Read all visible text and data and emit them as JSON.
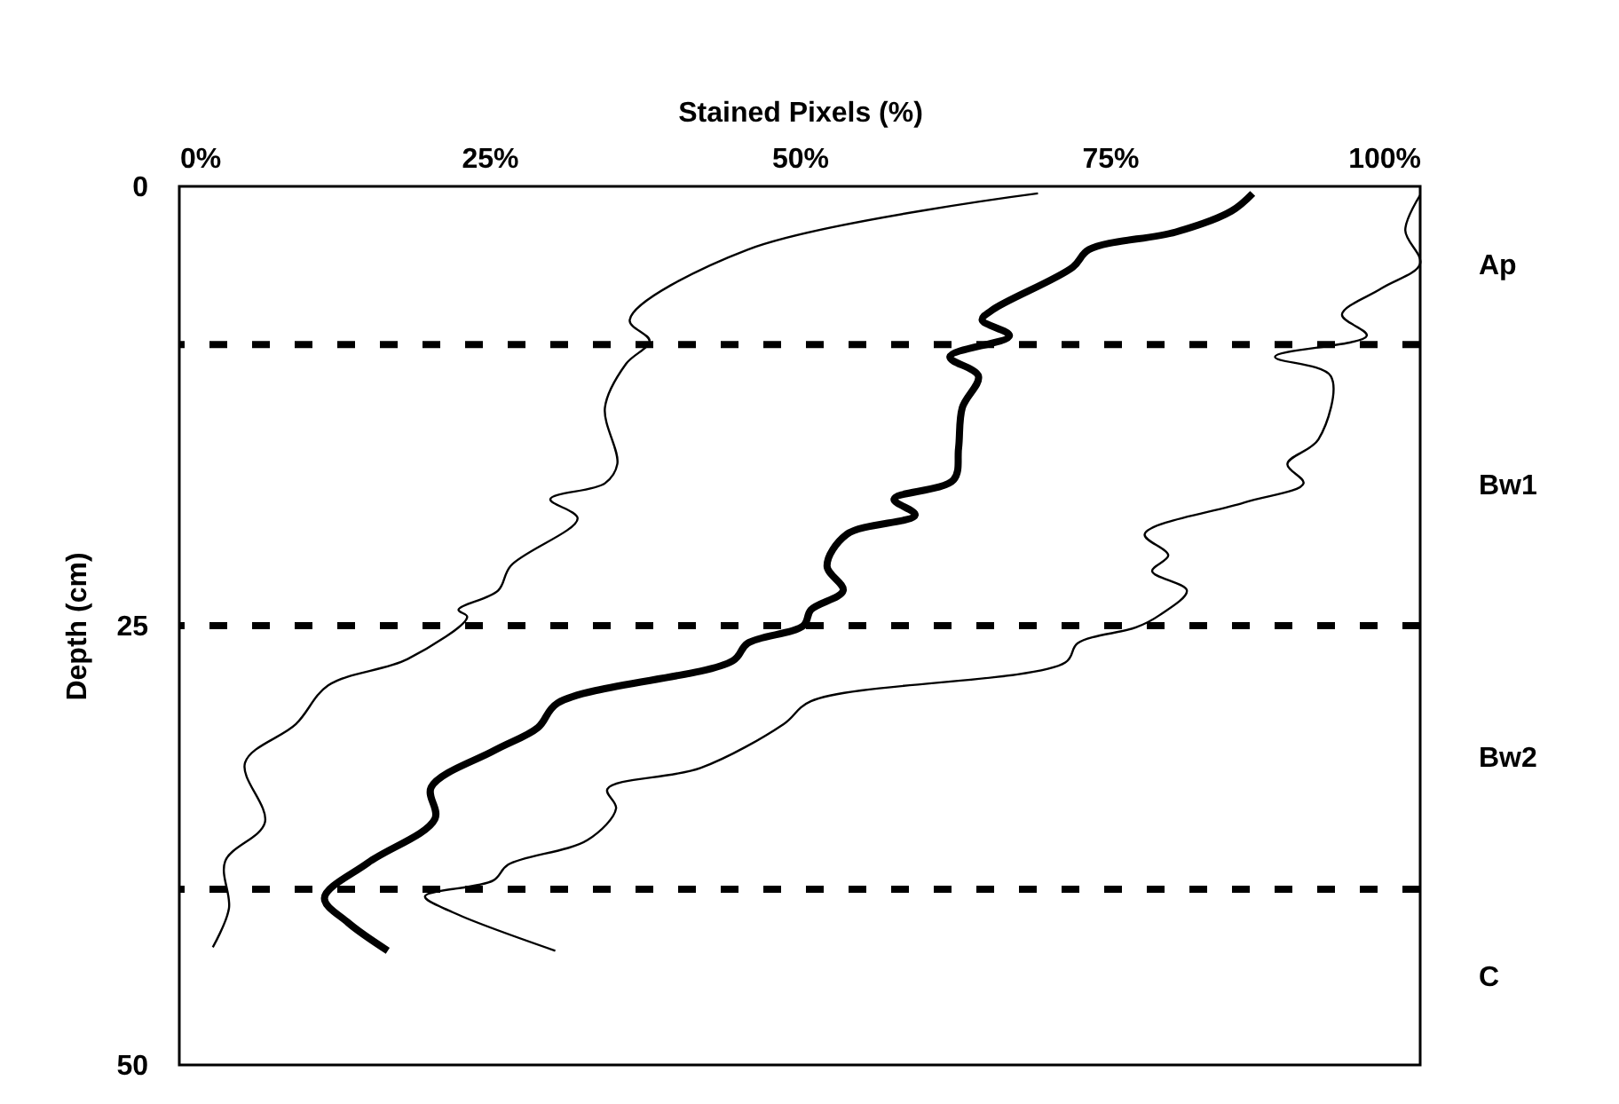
{
  "chart_data": {
    "type": "line",
    "xlabel": "Stained Pixels (%)",
    "ylabel": "Depth (cm)",
    "xlim": [
      0,
      100
    ],
    "xticks": [
      {
        "value": 0,
        "label": "0%"
      },
      {
        "value": 25,
        "label": "25%"
      },
      {
        "value": 50,
        "label": "50%"
      },
      {
        "value": 75,
        "label": "75%"
      },
      {
        "value": 100,
        "label": "100%"
      }
    ],
    "ylim": [
      50,
      0
    ],
    "yticks": [
      0,
      25,
      50
    ],
    "grid": false,
    "legend": false,
    "marker": "none",
    "line_style": "solid",
    "series": [
      {
        "color": "#000000",
        "x": [
          86.5,
          84.8,
          80.3,
          73.3,
          72.0,
          65.6,
          64.7,
          66.9,
          62.1,
          64.4,
          63.1,
          62.8,
          62.4,
          57.6,
          59.3,
          53.8,
          52.2,
          53.5,
          50.9,
          50.3,
          45.8,
          44.6,
          30.5,
          28.9,
          25.4,
          20.3,
          20.6,
          15.2,
          11.7,
          13.6,
          16.8
        ],
        "values": [
          0.4,
          1.4,
          2.6,
          3.6,
          4.6,
          7.0,
          7.6,
          8.5,
          9.7,
          10.8,
          12.6,
          14.9,
          16.7,
          17.8,
          18.7,
          19.8,
          21.6,
          23.0,
          24.1,
          25.0,
          26.0,
          27.0,
          29.4,
          30.8,
          32.1,
          34.2,
          36.0,
          38.5,
          40.5,
          41.9,
          43.5
        ]
      },
      {
        "color": "#000000",
        "x": [
          69.2,
          45.8,
          36.3,
          37.9,
          36.0,
          34.3,
          35.3,
          34.3,
          29.9,
          32.1,
          26.7,
          25.7,
          22.5,
          23.2,
          18.4,
          12.0,
          9.4,
          5.3,
          6.9,
          3.7,
          4.0,
          2.7
        ],
        "values": [
          0.4,
          3.6,
          7.6,
          8.8,
          10.1,
          12.6,
          15.8,
          16.9,
          17.8,
          18.9,
          21.6,
          23.0,
          24.1,
          24.5,
          26.9,
          28.4,
          30.6,
          32.8,
          36.2,
          38.4,
          41.1,
          43.3
        ]
      },
      {
        "color": "#000000",
        "x": [
          100,
          98.8,
          100,
          96.9,
          93.7,
          95.7,
          88.3,
          92.8,
          91.8,
          89.3,
          90.6,
          85.8,
          77.8,
          79.7,
          78.4,
          81.2,
          79.0,
          77.1,
          72.4,
          71.4,
          50.9,
          48.7,
          42.0,
          34.5,
          35.2,
          32.9,
          26.5,
          25.3,
          19.8,
          22.0,
          30.3
        ],
        "values": [
          0.5,
          2.5,
          4.4,
          5.8,
          7.3,
          8.5,
          9.7,
          10.8,
          14.4,
          15.8,
          16.9,
          18.0,
          19.8,
          21.0,
          21.9,
          23.0,
          24.4,
          25.1,
          26.0,
          27.1,
          29.3,
          30.6,
          33.1,
          34.3,
          35.4,
          37.2,
          38.6,
          39.5,
          40.4,
          41.3,
          43.5
        ]
      }
    ],
    "ref_lines": [
      {
        "axis": "y",
        "value": 9,
        "color": "#000000",
        "line_style": "dashed"
      },
      {
        "axis": "y",
        "value": 25,
        "color": "#000000",
        "line_style": "dashed"
      },
      {
        "axis": "y",
        "value": 40,
        "color": "#000000",
        "line_style": "dashed"
      }
    ],
    "annotations": [
      "Ap",
      "Bw1",
      "Bw2",
      "C"
    ]
  }
}
